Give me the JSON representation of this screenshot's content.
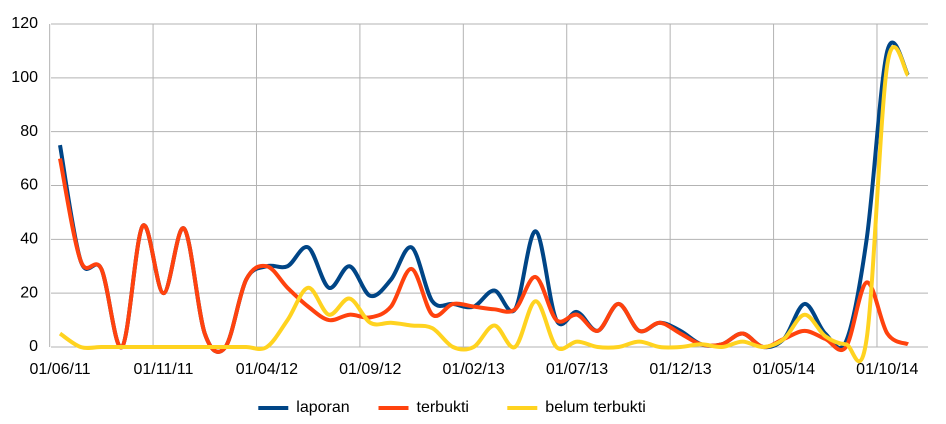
{
  "chart_data": {
    "type": "line",
    "categories": [
      "01/06/11",
      null,
      null,
      null,
      null,
      "01/11/11",
      null,
      null,
      null,
      null,
      "01/04/12",
      null,
      null,
      null,
      null,
      "01/09/12",
      null,
      null,
      null,
      null,
      "01/02/13",
      null,
      null,
      null,
      null,
      "01/07/13",
      null,
      null,
      null,
      null,
      "01/12/13",
      null,
      null,
      null,
      null,
      "01/05/14",
      null,
      null,
      null,
      null,
      "01/10/14",
      null
    ],
    "series": [
      {
        "name": "laporan",
        "color": "#004586",
        "values": [
          75,
          32,
          29,
          0,
          45,
          20,
          44,
          5,
          0,
          25,
          30,
          30,
          37,
          22,
          30,
          19,
          25,
          37,
          17,
          16,
          15,
          21,
          14,
          43,
          10,
          13,
          6,
          16,
          6,
          9,
          6,
          1,
          1,
          5,
          0,
          3,
          16,
          5,
          2,
          40,
          110,
          101
        ]
      },
      {
        "name": "terbukti",
        "color": "#ff420e",
        "values": [
          70,
          32,
          29,
          0,
          45,
          20,
          44,
          5,
          0,
          25,
          30,
          22,
          15,
          10,
          12,
          11,
          15,
          29,
          12,
          16,
          15,
          14,
          14,
          26,
          10,
          12,
          6,
          16,
          6,
          9,
          5,
          1,
          1,
          5,
          0,
          3,
          6,
          3,
          0,
          24,
          5,
          1
        ]
      },
      {
        "name": "belum terbukti",
        "color": "#ffd320",
        "values": [
          5,
          0,
          0,
          0,
          0,
          0,
          0,
          0,
          0,
          0,
          0,
          10,
          22,
          12,
          18,
          9,
          9,
          8,
          7,
          0,
          0,
          8,
          0,
          17,
          0,
          2,
          0,
          0,
          2,
          0,
          0,
          1,
          0,
          2,
          0,
          3,
          12,
          4,
          1,
          3,
          105,
          101
        ]
      }
    ],
    "ylim": [
      0,
      120
    ],
    "yticks": [
      0,
      20,
      40,
      60,
      80,
      100,
      120
    ],
    "grid": true,
    "legend": "bottom"
  }
}
